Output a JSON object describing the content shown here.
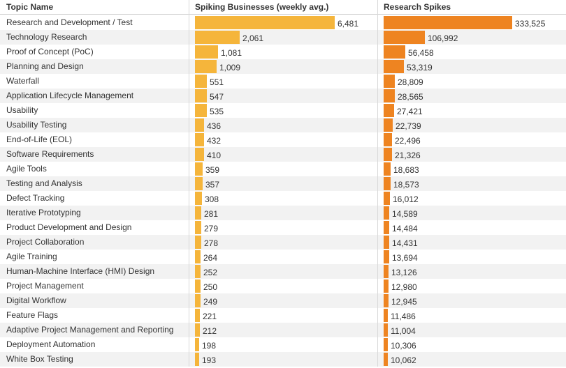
{
  "headers": {
    "topic": "Topic Name",
    "businesses": "Spiking Businesses (weekly avg.)",
    "spikes": "Research Spikes"
  },
  "colors": {
    "businesses_bar": "#f5b53b",
    "spikes_bar": "#ee8421",
    "row_alt": "#f2f2f2"
  },
  "chart_data": {
    "type": "bar",
    "orientation": "horizontal",
    "categories": [
      "Research and Development / Test",
      "Technology Research",
      "Proof of Concept (PoC)",
      "Planning and Design",
      "Waterfall",
      "Application Lifecycle Management",
      "Usability",
      "Usability Testing",
      "End-of-Life (EOL)",
      "Software Requirements",
      "Agile Tools",
      "Testing and Analysis",
      "Defect Tracking",
      "Iterative Prototyping",
      "Product Development and Design",
      "Project Collaboration",
      "Agile Training",
      "Human-Machine Interface (HMI) Design",
      "Project Management",
      "Digital Workflow",
      "Feature Flags",
      "Adaptive Project Management and Reporting",
      "Deployment Automation",
      "White Box Testing"
    ],
    "series": [
      {
        "name": "Spiking Businesses (weekly avg.)",
        "values": [
          6481,
          2061,
          1081,
          1009,
          551,
          547,
          535,
          436,
          432,
          410,
          359,
          357,
          308,
          281,
          279,
          278,
          264,
          252,
          250,
          249,
          221,
          212,
          198,
          193
        ],
        "labels": [
          "6,481",
          "2,061",
          "1,081",
          "1,009",
          "551",
          "547",
          "535",
          "436",
          "432",
          "410",
          "359",
          "357",
          "308",
          "281",
          "279",
          "278",
          "264",
          "252",
          "250",
          "249",
          "221",
          "212",
          "198",
          "193"
        ]
      },
      {
        "name": "Research Spikes",
        "values": [
          333525,
          106992,
          56458,
          53319,
          28809,
          28565,
          27421,
          22739,
          22496,
          21326,
          18683,
          18573,
          16012,
          14589,
          14484,
          14431,
          13694,
          13126,
          12980,
          12945,
          11486,
          11004,
          10306,
          10062
        ],
        "labels": [
          "333,525",
          "106,992",
          "56,458",
          "53,319",
          "28,809",
          "28,565",
          "27,421",
          "22,739",
          "22,496",
          "21,326",
          "18,683",
          "18,573",
          "16,012",
          "14,589",
          "14,484",
          "14,431",
          "13,694",
          "13,126",
          "12,980",
          "12,945",
          "11,486",
          "11,004",
          "10,306",
          "10,062"
        ]
      }
    ],
    "title": "",
    "xlabel": "",
    "ylabel": "Topic Name"
  }
}
